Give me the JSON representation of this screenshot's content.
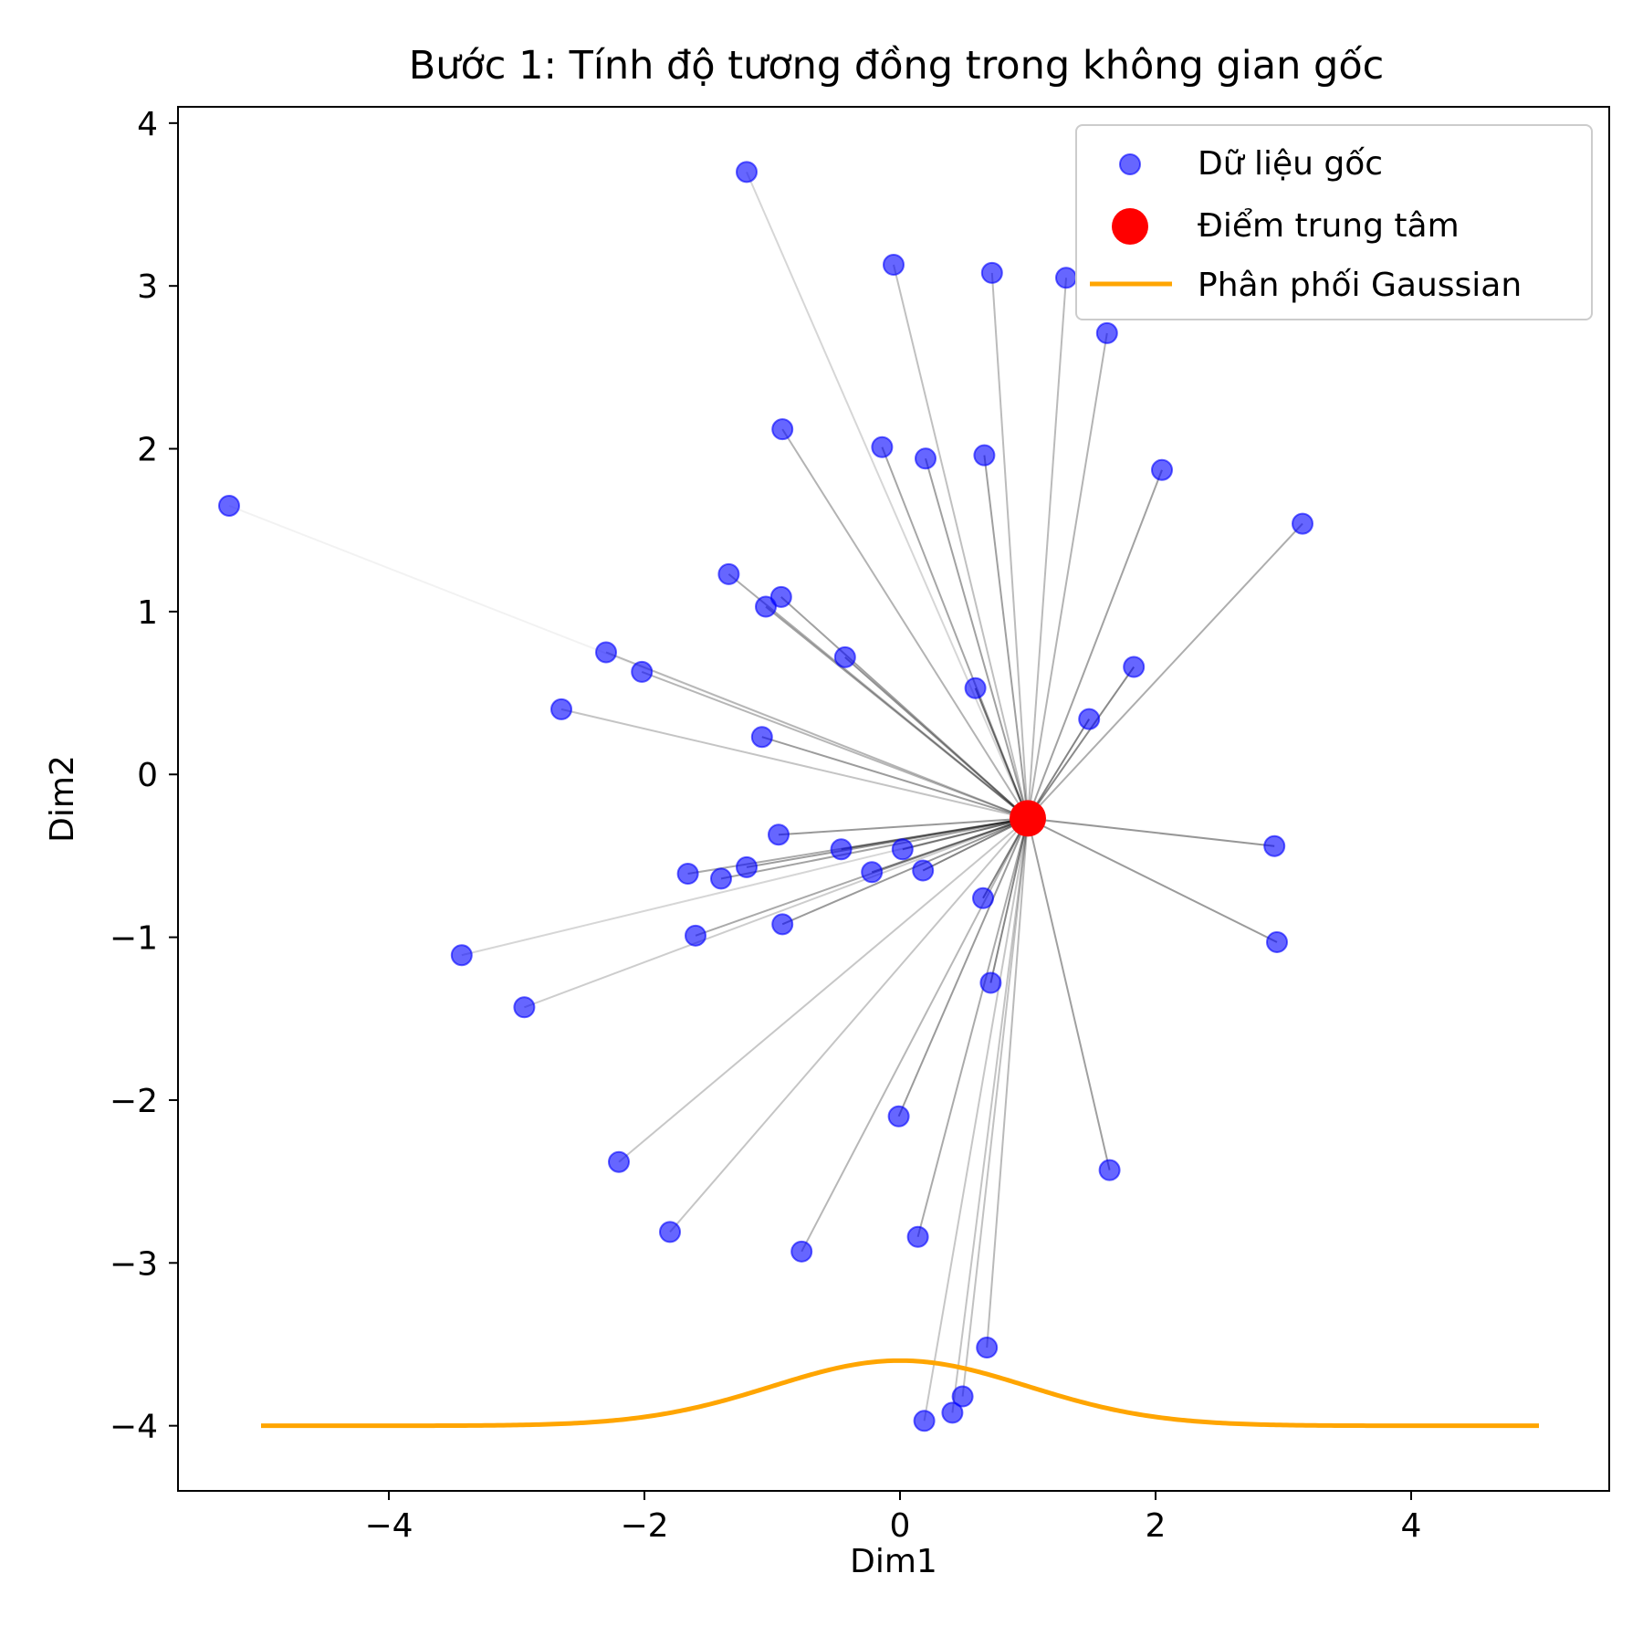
{
  "chart_data": {
    "type": "scatter",
    "title": "Bước 1: Tính độ tương đồng trong không gian gốc",
    "xlabel": "Dim1",
    "ylabel": "Dim2",
    "xlim": [
      -5.65,
      5.55
    ],
    "ylim": [
      -4.4,
      4.1
    ],
    "xticks": [
      -4,
      -2,
      0,
      2,
      4
    ],
    "yticks": [
      -4,
      -3,
      -2,
      -1,
      0,
      1,
      2,
      3,
      4
    ],
    "grid": false,
    "legend_position": "top-right",
    "center_point": {
      "name": "Điểm trung tâm",
      "color": "#ff0000",
      "x": 1.0,
      "y": -0.27
    },
    "series": [
      {
        "name": "Dữ liệu gốc",
        "type": "scatter",
        "color": "#0000ff",
        "alpha": 0.6,
        "points": [
          [
            -1.2,
            3.7
          ],
          [
            -0.05,
            3.13
          ],
          [
            0.72,
            3.08
          ],
          [
            1.3,
            3.05
          ],
          [
            1.62,
            2.71
          ],
          [
            -0.92,
            2.12
          ],
          [
            -0.14,
            2.01
          ],
          [
            0.2,
            1.94
          ],
          [
            0.66,
            1.96
          ],
          [
            2.05,
            1.87
          ],
          [
            3.15,
            1.54
          ],
          [
            -5.25,
            1.65
          ],
          [
            -1.34,
            1.23
          ],
          [
            -0.93,
            1.09
          ],
          [
            -1.05,
            1.03
          ],
          [
            -2.3,
            0.75
          ],
          [
            -2.02,
            0.63
          ],
          [
            -0.43,
            0.72
          ],
          [
            1.83,
            0.66
          ],
          [
            0.59,
            0.53
          ],
          [
            -2.65,
            0.4
          ],
          [
            1.48,
            0.34
          ],
          [
            -1.08,
            0.23
          ],
          [
            -0.95,
            -0.37
          ],
          [
            -0.46,
            -0.46
          ],
          [
            0.02,
            -0.46
          ],
          [
            -1.2,
            -0.57
          ],
          [
            -0.22,
            -0.6
          ],
          [
            0.18,
            -0.59
          ],
          [
            -1.66,
            -0.61
          ],
          [
            -1.4,
            -0.64
          ],
          [
            2.93,
            -0.44
          ],
          [
            0.65,
            -0.76
          ],
          [
            -0.92,
            -0.92
          ],
          [
            -1.6,
            -0.99
          ],
          [
            2.95,
            -1.03
          ],
          [
            -3.43,
            -1.11
          ],
          [
            0.71,
            -1.28
          ],
          [
            -2.94,
            -1.43
          ],
          [
            -0.01,
            -2.1
          ],
          [
            1.64,
            -2.43
          ],
          [
            -2.2,
            -2.38
          ],
          [
            0.14,
            -2.84
          ],
          [
            -1.8,
            -2.81
          ],
          [
            -0.77,
            -2.93
          ],
          [
            0.68,
            -3.52
          ],
          [
            0.49,
            -3.82
          ],
          [
            0.41,
            -3.92
          ],
          [
            0.19,
            -3.97
          ]
        ]
      },
      {
        "name": "Phân phối Gaussian",
        "type": "line",
        "color": "#ffa500",
        "x_range": [
          -5,
          5
        ],
        "baseline": -4.0,
        "mean": 0.0,
        "std": 1.0,
        "peak_height": 0.4
      }
    ]
  }
}
